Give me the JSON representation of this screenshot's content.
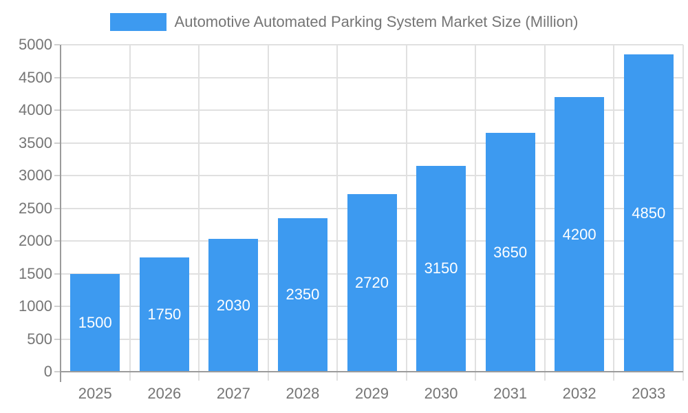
{
  "legend": {
    "items": [
      {
        "label": "Automotive Automated Parking System Market Size (Million)",
        "color": "#3D9AF0"
      }
    ],
    "position": "top"
  },
  "colors": {
    "bar": "#3D9AF0",
    "grid": "#E0E0E0",
    "axis": "#9B9B9B",
    "tick": "#CFCFCF",
    "text": "#757575",
    "bar_label": "#FFFFFF",
    "background": "#FFFFFF"
  },
  "chart_data": {
    "type": "bar",
    "title": "Automotive Automated Parking System Market Size (Million)",
    "categories": [
      "2025",
      "2026",
      "2027",
      "2028",
      "2029",
      "2030",
      "2031",
      "2032",
      "2033"
    ],
    "values": [
      1500,
      1750,
      2030,
      2350,
      2720,
      3150,
      3650,
      4200,
      4850
    ],
    "series": [
      {
        "name": "Automotive Automated Parking System Market Size (Million)",
        "values": [
          1500,
          1750,
          2030,
          2350,
          2720,
          3150,
          3650,
          4200,
          4850
        ]
      }
    ],
    "xlabel": "",
    "ylabel": "",
    "ylim": [
      0,
      5000
    ],
    "yticks": [
      0,
      500,
      1000,
      1500,
      2000,
      2500,
      3000,
      3500,
      4000,
      4500,
      5000
    ],
    "grid": true,
    "legend_position": "top",
    "data_labels": "inside-center"
  }
}
